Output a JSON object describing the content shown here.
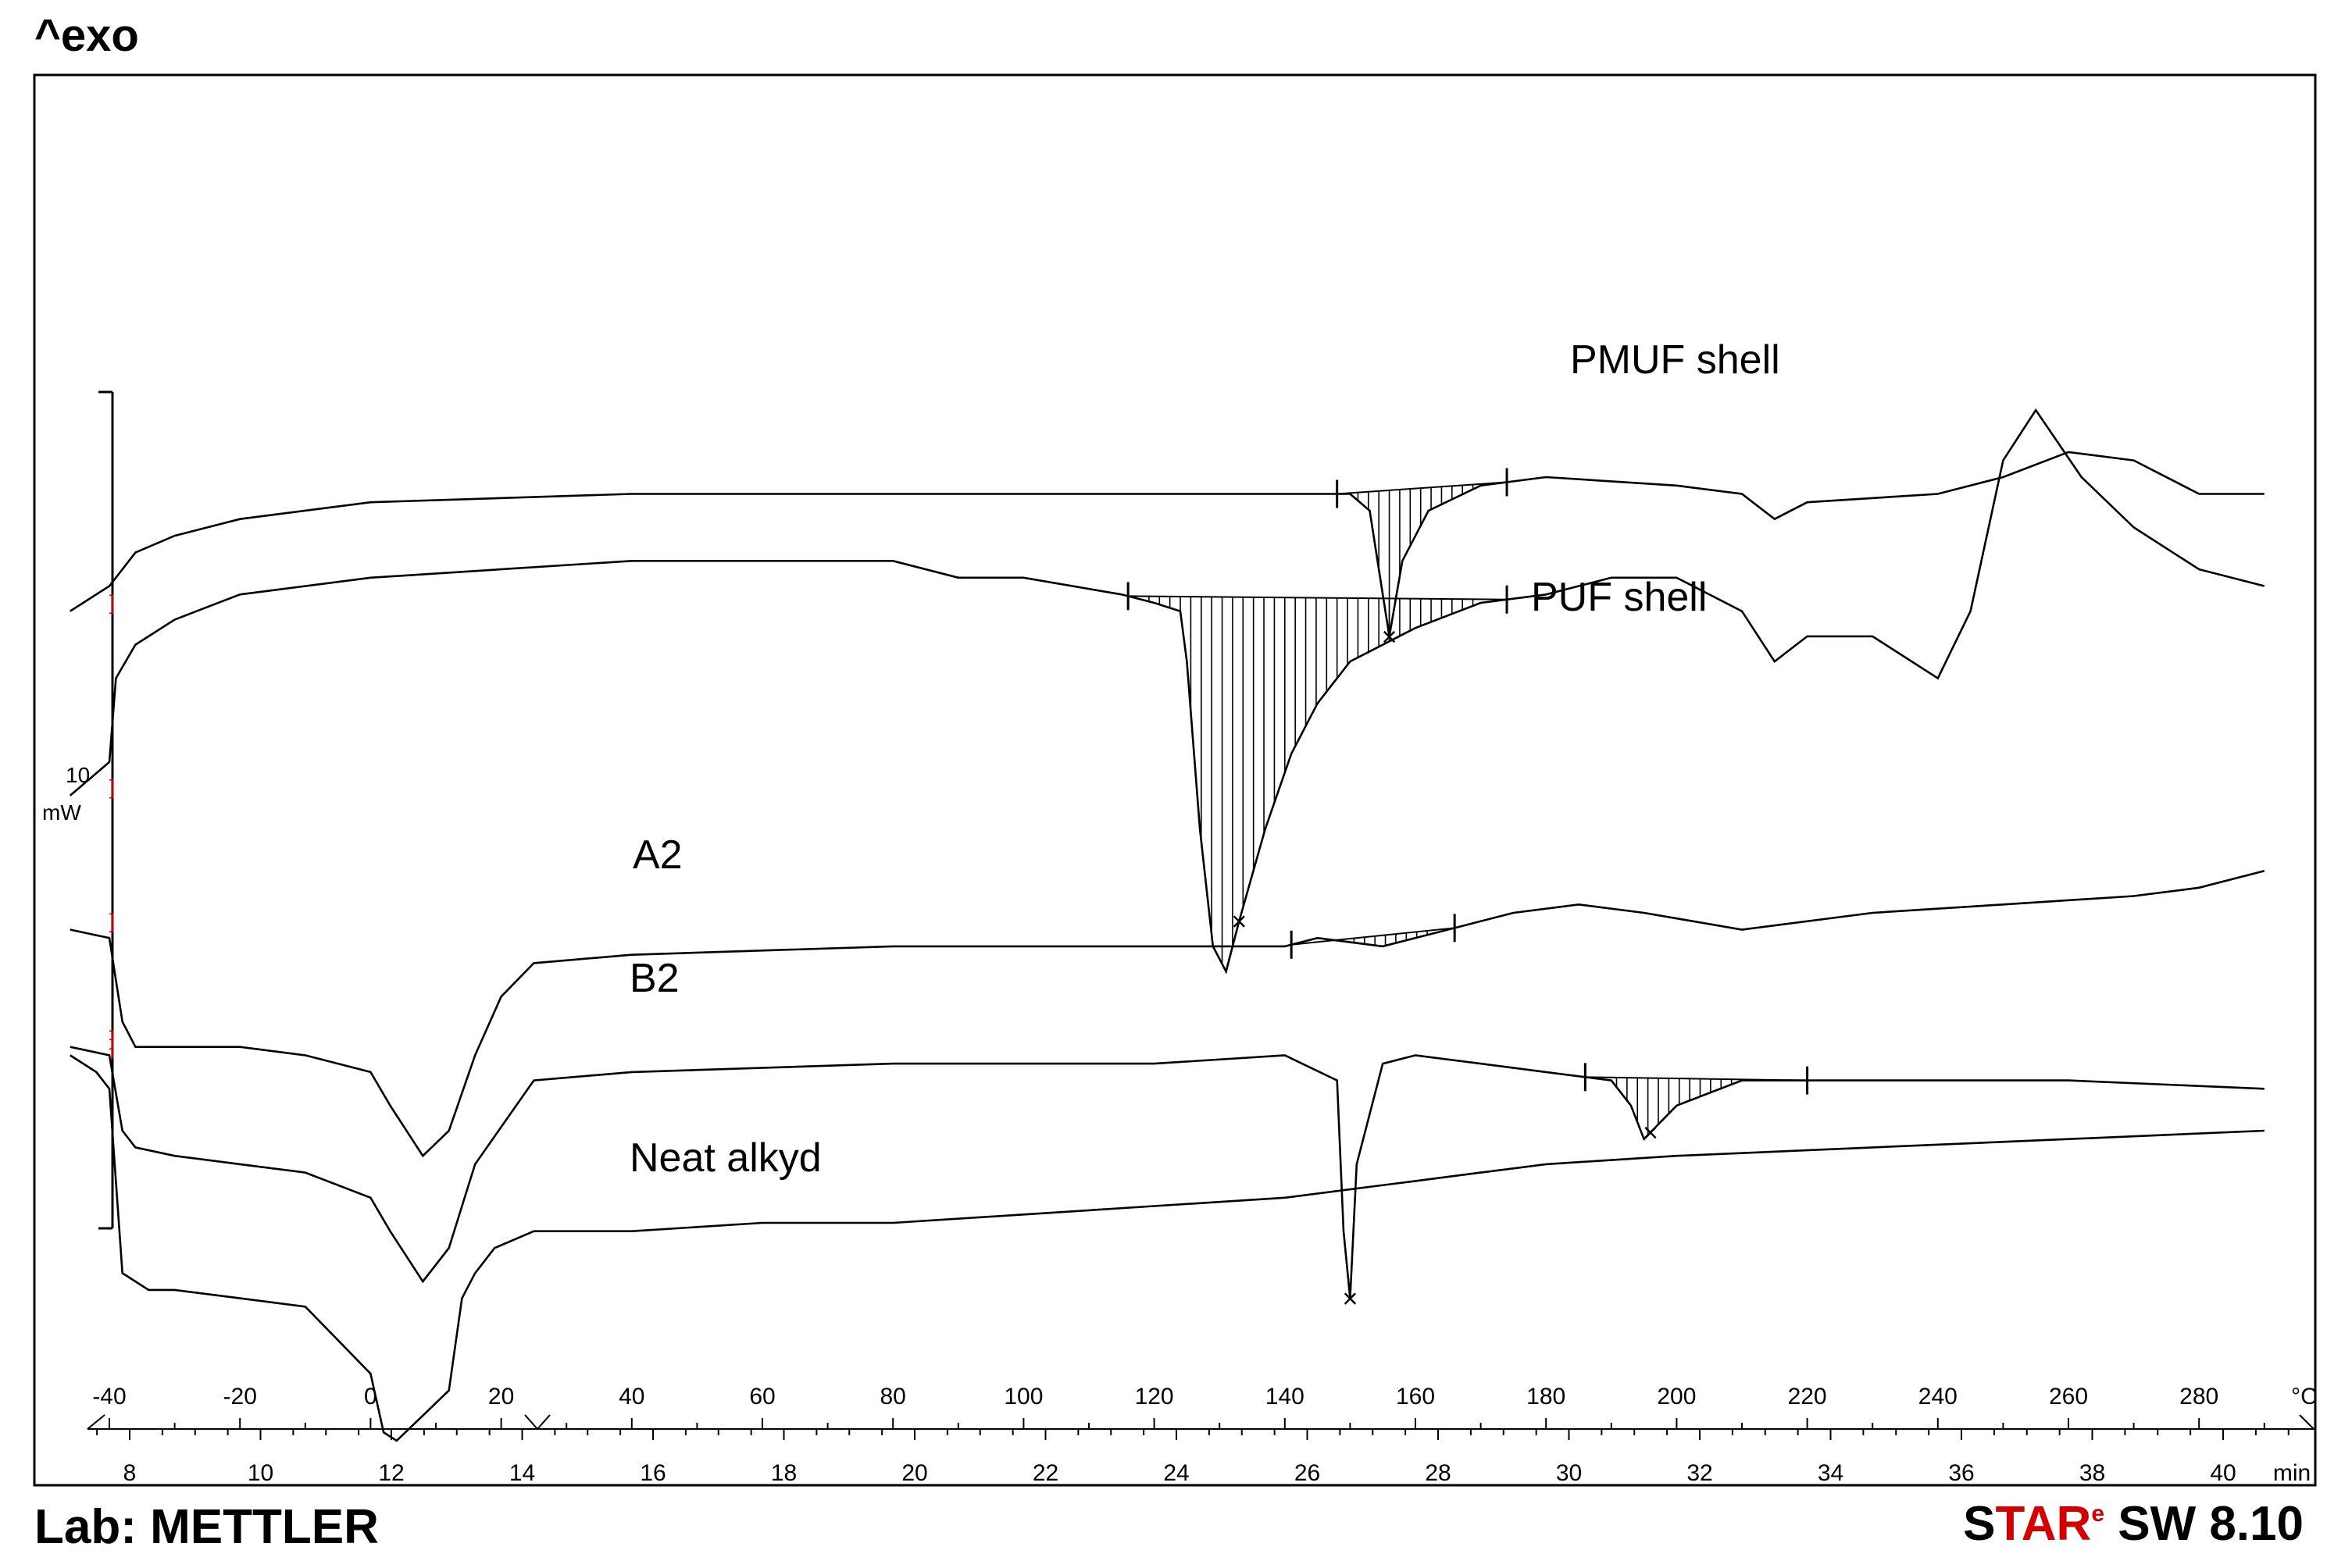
{
  "header": {
    "exo_label": "^exo"
  },
  "footer": {
    "lab": "Lab: METTLER",
    "software": {
      "s": "S",
      "tar": "TAR",
      "e": "e",
      "rest": " SW 8.10"
    }
  },
  "chart_data": {
    "type": "line",
    "title": "",
    "xlabel": "°C",
    "x2label": "min",
    "xlim": [
      -40,
      290
    ],
    "x_ticks": [
      -40,
      -20,
      0,
      20,
      40,
      60,
      80,
      100,
      120,
      140,
      160,
      180,
      200,
      220,
      240,
      260,
      280
    ],
    "x2_ticks": [
      8,
      10,
      12,
      14,
      16,
      18,
      20,
      22,
      24,
      26,
      28,
      30,
      32,
      34,
      36,
      38,
      40
    ],
    "scale_bar": {
      "value": "10",
      "unit": "mW"
    },
    "grid": false,
    "series": [
      {
        "name": "PMUF shell",
        "points": [
          [
            -46,
            64
          ],
          [
            -40,
            61
          ],
          [
            -38,
            59
          ],
          [
            -36,
            57
          ],
          [
            -30,
            55
          ],
          [
            -20,
            53
          ],
          [
            0,
            51
          ],
          [
            40,
            50
          ],
          [
            100,
            50
          ],
          [
            150,
            50
          ],
          [
            153,
            52
          ],
          [
            155,
            62
          ],
          [
            156,
            67
          ],
          [
            158,
            58
          ],
          [
            162,
            52
          ],
          [
            170,
            49
          ],
          [
            180,
            48
          ],
          [
            190,
            48.5
          ],
          [
            200,
            49
          ],
          [
            210,
            50
          ],
          [
            215,
            53
          ],
          [
            220,
            51
          ],
          [
            240,
            50
          ],
          [
            250,
            48
          ],
          [
            260,
            45
          ],
          [
            270,
            46
          ],
          [
            280,
            50
          ],
          [
            290,
            50
          ]
        ],
        "peaks": [
          {
            "x": 156,
            "label": "×"
          }
        ],
        "integration": [
          148,
          174
        ]
      },
      {
        "name": "PUF shell",
        "points": [
          [
            -46,
            86
          ],
          [
            -40,
            82
          ],
          [
            -39,
            72
          ],
          [
            -36,
            68
          ],
          [
            -30,
            65
          ],
          [
            -20,
            62
          ],
          [
            0,
            60
          ],
          [
            40,
            58
          ],
          [
            80,
            58
          ],
          [
            90,
            60
          ],
          [
            100,
            60
          ],
          [
            115,
            62
          ],
          [
            120,
            63
          ],
          [
            124,
            64
          ],
          [
            125,
            70
          ],
          [
            127,
            90
          ],
          [
            129,
            104
          ],
          [
            131,
            107
          ],
          [
            133,
            101
          ],
          [
            137,
            90
          ],
          [
            141,
            81
          ],
          [
            145,
            75
          ],
          [
            150,
            70
          ],
          [
            160,
            66
          ],
          [
            170,
            63
          ],
          [
            180,
            62
          ],
          [
            190,
            60
          ],
          [
            200,
            60
          ],
          [
            210,
            64
          ],
          [
            215,
            70
          ],
          [
            220,
            67
          ],
          [
            230,
            67
          ],
          [
            240,
            72
          ],
          [
            245,
            64
          ],
          [
            250,
            46
          ],
          [
            255,
            40
          ],
          [
            262,
            48
          ],
          [
            270,
            54
          ],
          [
            280,
            59
          ],
          [
            290,
            61
          ]
        ],
        "peaks": [
          {
            "x": 133,
            "label": "×"
          }
        ],
        "integration": [
          116,
          174
        ]
      },
      {
        "name": "A2",
        "points": [
          [
            -46,
            102
          ],
          [
            -40,
            103
          ],
          [
            -38,
            113
          ],
          [
            -36,
            116
          ],
          [
            -30,
            116
          ],
          [
            -20,
            116
          ],
          [
            -10,
            117
          ],
          [
            0,
            119
          ],
          [
            3,
            123
          ],
          [
            8,
            129
          ],
          [
            12,
            126
          ],
          [
            16,
            117
          ],
          [
            20,
            110
          ],
          [
            25,
            106
          ],
          [
            40,
            105
          ],
          [
            80,
            104
          ],
          [
            120,
            104
          ],
          [
            140,
            104
          ],
          [
            145,
            103
          ],
          [
            150,
            103.5
          ],
          [
            155,
            104
          ],
          [
            165,
            102
          ],
          [
            175,
            100
          ],
          [
            185,
            99
          ],
          [
            195,
            100
          ],
          [
            210,
            102
          ],
          [
            230,
            100
          ],
          [
            250,
            99
          ],
          [
            270,
            98
          ],
          [
            280,
            97
          ],
          [
            290,
            95
          ]
        ],
        "peaks": [],
        "integration": [
          141,
          166
        ]
      },
      {
        "name": "B2",
        "points": [
          [
            -46,
            116
          ],
          [
            -40,
            117
          ],
          [
            -38,
            126
          ],
          [
            -36,
            128
          ],
          [
            -30,
            129
          ],
          [
            -20,
            130
          ],
          [
            -10,
            131
          ],
          [
            0,
            134
          ],
          [
            3,
            138
          ],
          [
            8,
            144
          ],
          [
            12,
            140
          ],
          [
            16,
            130
          ],
          [
            25,
            120
          ],
          [
            40,
            119
          ],
          [
            80,
            118
          ],
          [
            120,
            118
          ],
          [
            140,
            117
          ],
          [
            148,
            120
          ],
          [
            149,
            138
          ],
          [
            150,
            146
          ],
          [
            151,
            130
          ],
          [
            155,
            118
          ],
          [
            160,
            117
          ],
          [
            180,
            119
          ],
          [
            190,
            120
          ],
          [
            193,
            123
          ],
          [
            195,
            127
          ],
          [
            200,
            123
          ],
          [
            210,
            120
          ],
          [
            220,
            120
          ],
          [
            240,
            120
          ],
          [
            260,
            120
          ],
          [
            290,
            121
          ]
        ],
        "peaks": [
          {
            "x": 150,
            "label": "×"
          },
          {
            "x": 196,
            "label": "×"
          }
        ],
        "integration": [
          186,
          220
        ]
      },
      {
        "name": "Neat alkyd",
        "points": [
          [
            -46,
            117
          ],
          [
            -42,
            119
          ],
          [
            -40,
            121
          ],
          [
            -38,
            143
          ],
          [
            -34,
            145
          ],
          [
            -30,
            145
          ],
          [
            -20,
            146
          ],
          [
            -10,
            147
          ],
          [
            -5,
            151
          ],
          [
            0,
            155
          ],
          [
            2,
            162
          ],
          [
            4,
            163
          ],
          [
            8,
            160
          ],
          [
            12,
            157
          ],
          [
            14,
            146
          ],
          [
            16,
            143
          ],
          [
            19,
            140
          ],
          [
            25,
            138
          ],
          [
            40,
            138
          ],
          [
            60,
            137
          ],
          [
            80,
            137
          ],
          [
            100,
            136
          ],
          [
            120,
            135
          ],
          [
            140,
            134
          ],
          [
            150,
            133
          ],
          [
            160,
            132
          ],
          [
            170,
            131
          ],
          [
            180,
            130
          ],
          [
            200,
            129
          ],
          [
            230,
            128
          ],
          [
            260,
            127
          ],
          [
            290,
            126
          ]
        ],
        "peaks": [],
        "integration": []
      }
    ]
  }
}
